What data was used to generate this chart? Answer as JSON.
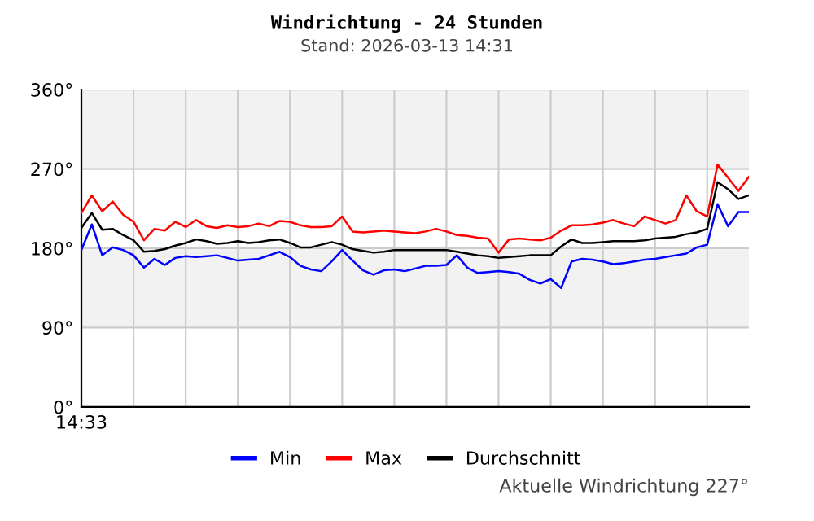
{
  "chart_data": {
    "type": "line",
    "title": "Windrichtung - 24 Stunden",
    "subtitle": "Stand: 2026-03-13 14:31",
    "annotations": [
      "Aktuelle Windrichtung 227°"
    ],
    "categories": [
      "14:33",
      null,
      null,
      null,
      null,
      null,
      null,
      null,
      null,
      null,
      null,
      null,
      null,
      null,
      null,
      null,
      null,
      null,
      null,
      null,
      null,
      null,
      null,
      null,
      null,
      null,
      null,
      null,
      null,
      null,
      null,
      null,
      null,
      null,
      null,
      null,
      null,
      null,
      null,
      null,
      null,
      null,
      null,
      null,
      null,
      null,
      null,
      null,
      null,
      null,
      null,
      null,
      null,
      null,
      null,
      null,
      null,
      null,
      null,
      null,
      null,
      null,
      null,
      null,
      null
    ],
    "ylim": [
      0,
      360
    ],
    "yticks": [
      {
        "value": 0,
        "label": "0°"
      },
      {
        "value": 90,
        "label": "90°"
      },
      {
        "value": 180,
        "label": "180°"
      },
      {
        "value": 270,
        "label": "270°"
      },
      {
        "value": 360,
        "label": "360°"
      }
    ],
    "bands": [
      {
        "axis": "y",
        "from": 90,
        "to": 180,
        "color": "#f2f2f2"
      },
      {
        "axis": "y",
        "from": 270,
        "to": 360,
        "color": "#f2f2f2"
      }
    ],
    "grid": true,
    "legend": "bottom",
    "line_style": "solid",
    "marker": "none",
    "series": [
      {
        "name": "Min",
        "color": "#0000ff",
        "values": [
          178,
          207,
          172,
          181,
          178,
          172,
          158,
          168,
          161,
          169,
          171,
          170,
          171,
          172,
          169,
          166,
          167,
          168,
          172,
          176,
          170,
          160,
          156,
          154,
          165,
          178,
          166,
          155,
          150,
          155,
          156,
          154,
          157,
          160,
          160,
          161,
          172,
          158,
          152,
          153,
          154,
          153,
          151,
          144,
          140,
          145,
          135,
          165,
          168,
          167,
          165,
          162,
          163,
          165,
          167,
          168,
          170,
          172,
          174,
          181,
          184,
          230,
          205,
          221,
          221
        ]
      },
      {
        "name": "Max",
        "color": "#ff0000",
        "values": [
          220,
          240,
          222,
          233,
          218,
          210,
          189,
          202,
          200,
          210,
          204,
          212,
          205,
          203,
          206,
          204,
          205,
          208,
          205,
          211,
          210,
          206,
          204,
          204,
          205,
          216,
          199,
          198,
          199,
          200,
          199,
          198,
          197,
          199,
          202,
          199,
          195,
          194,
          192,
          191,
          175,
          190,
          191,
          190,
          189,
          192,
          200,
          206,
          206,
          207,
          209,
          212,
          208,
          205,
          216,
          212,
          208,
          212,
          240,
          222,
          216,
          275,
          260,
          245,
          261
        ]
      },
      {
        "name": "Durchschnitt",
        "color": "#000000",
        "values": [
          203,
          220,
          201,
          202,
          195,
          189,
          176,
          177,
          179,
          183,
          186,
          190,
          188,
          185,
          186,
          188,
          186,
          187,
          189,
          190,
          186,
          181,
          181,
          184,
          187,
          184,
          179,
          177,
          175,
          176,
          178,
          178,
          178,
          178,
          178,
          178,
          176,
          174,
          172,
          171,
          169,
          170,
          171,
          172,
          172,
          172,
          182,
          190,
          186,
          186,
          187,
          188,
          188,
          188,
          189,
          191,
          192,
          193,
          196,
          198,
          202,
          255,
          247,
          236,
          240
        ]
      }
    ]
  }
}
